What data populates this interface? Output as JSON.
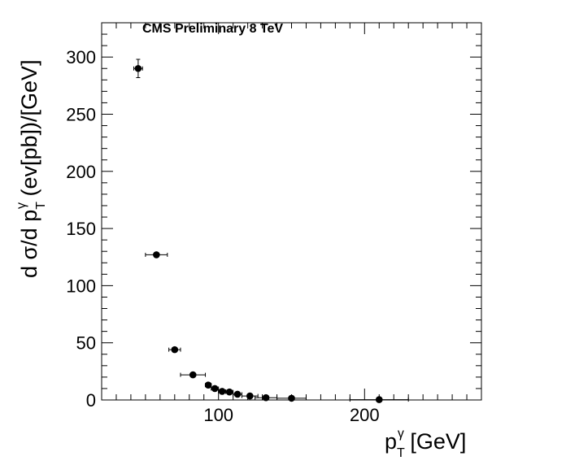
{
  "chart_data": {
    "type": "scatter",
    "title": "CMS Preliminary 8 TeV",
    "xlabel": {
      "prefix": "p",
      "sub": "T",
      "sup": "γ",
      "suffix": " [GeV]"
    },
    "ylabel": {
      "prefix": "d σ/d p",
      "sub": "T",
      "sup": "γ",
      "suffix": " (ev[pb])/[GeV]"
    },
    "xlim": [
      20,
      280
    ],
    "ylim": [
      0,
      330
    ],
    "x_major_ticks": [
      100,
      200
    ],
    "x_tick_labels": [
      "100",
      "200"
    ],
    "y_major_ticks": [
      0,
      50,
      100,
      150,
      200,
      250,
      300
    ],
    "y_tick_labels": [
      "0",
      "50",
      "100",
      "150",
      "200",
      "250",
      "300"
    ],
    "grid": false,
    "marker": "filled-circle",
    "marker_color": "#000000",
    "points": [
      {
        "x": 45,
        "y": 290,
        "xerr": 3,
        "yerr": 8
      },
      {
        "x": 57.5,
        "y": 127,
        "xerr": 7.5,
        "yerr": 2
      },
      {
        "x": 70,
        "y": 44,
        "xerr": 4,
        "yerr": 1.5
      },
      {
        "x": 82.5,
        "y": 22,
        "xerr": 8.5,
        "yerr": 1
      },
      {
        "x": 93,
        "y": 13,
        "xerr": 2,
        "yerr": 0.8
      },
      {
        "x": 97.5,
        "y": 10,
        "xerr": 2.5,
        "yerr": 0.6
      },
      {
        "x": 102.5,
        "y": 7.5,
        "xerr": 2.5,
        "yerr": 0.5
      },
      {
        "x": 107.5,
        "y": 7,
        "xerr": 2.5,
        "yerr": 0.5
      },
      {
        "x": 113,
        "y": 5,
        "xerr": 3,
        "yerr": 0.4
      },
      {
        "x": 121.5,
        "y": 3.5,
        "xerr": 5.5,
        "yerr": 0.3
      },
      {
        "x": 132.5,
        "y": 2,
        "xerr": 7.5,
        "yerr": 0.2
      },
      {
        "x": 150,
        "y": 1.5,
        "xerr": 10,
        "yerr": 0.2
      },
      {
        "x": 210,
        "y": 0.3,
        "xerr": 20,
        "yerr": 0.1
      }
    ]
  }
}
